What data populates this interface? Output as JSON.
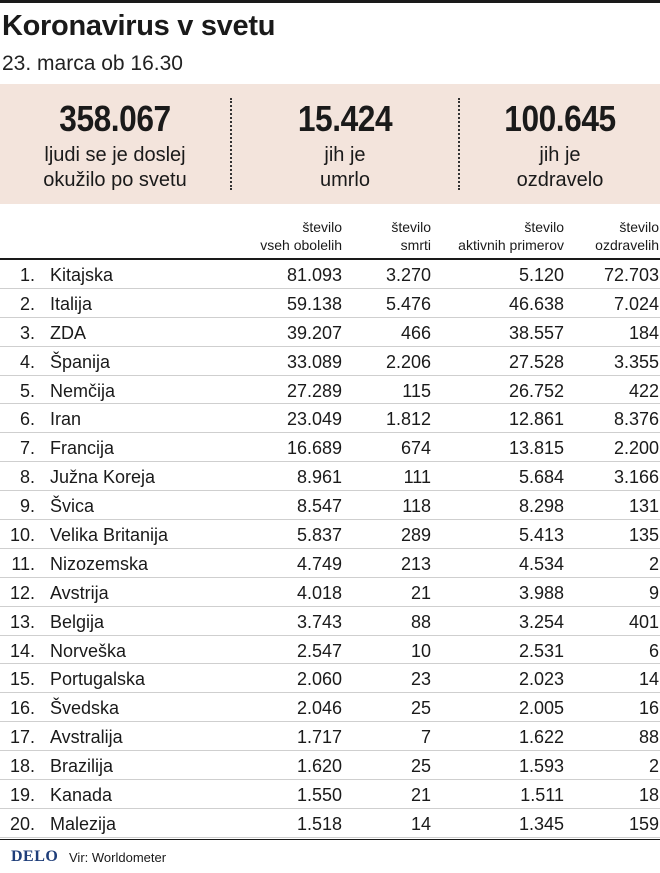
{
  "title": "Koronavirus v svetu",
  "subtitle": "23. marca ob 16.30",
  "summary": [
    {
      "value": "358.067",
      "label": "ljudi se je doslej\nokužilo po svetu"
    },
    {
      "value": "15.424",
      "label": "jih je\numrlo"
    },
    {
      "value": "100.645",
      "label": "jih je\nozdravelo"
    }
  ],
  "columns": [
    "število\nvseh obolelih",
    "število\nsmrti",
    "število\naktivnih primerov",
    "število\nozdravelih"
  ],
  "chart_data": {
    "type": "table",
    "columns": [
      "",
      "",
      "število vseh obolelih",
      "število smrti",
      "število aktivnih primerov",
      "število ozdravelih"
    ],
    "rows": [
      [
        "1.",
        "Kitajska",
        "81.093",
        "3.270",
        "5.120",
        "72.703"
      ],
      [
        "2.",
        "Italija",
        "59.138",
        "5.476",
        "46.638",
        "7.024"
      ],
      [
        "3.",
        "ZDA",
        "39.207",
        "466",
        "38.557",
        "184"
      ],
      [
        "4.",
        "Španija",
        "33.089",
        "2.206",
        "27.528",
        "3.355"
      ],
      [
        "5.",
        "Nemčija",
        "27.289",
        "115",
        "26.752",
        "422"
      ],
      [
        "6.",
        "Iran",
        "23.049",
        "1.812",
        "12.861",
        "8.376"
      ],
      [
        "7.",
        "Francija",
        "16.689",
        "674",
        "13.815",
        "2.200"
      ],
      [
        "8.",
        "Južna Koreja",
        "8.961",
        "111",
        "5.684",
        "3.166"
      ],
      [
        "9.",
        "Švica",
        "8.547",
        "118",
        "8.298",
        "131"
      ],
      [
        "10.",
        "Velika Britanija",
        "5.837",
        "289",
        "5.413",
        "135"
      ],
      [
        "11.",
        "Nizozemska",
        "4.749",
        "213",
        "4.534",
        "2"
      ],
      [
        "12.",
        "Avstrija",
        "4.018",
        "21",
        "3.988",
        "9"
      ],
      [
        "13.",
        "Belgija",
        "3.743",
        "88",
        "3.254",
        "401"
      ],
      [
        "14.",
        "Norveška",
        "2.547",
        "10",
        "2.531",
        "6"
      ],
      [
        "15.",
        "Portugalska",
        "2.060",
        "23",
        "2.023",
        "14"
      ],
      [
        "16.",
        "Švedska",
        "2.046",
        "25",
        "2.005",
        "16"
      ],
      [
        "17.",
        "Avstralija",
        "1.717",
        "7",
        "1.622",
        "88"
      ],
      [
        "18.",
        "Brazilija",
        "1.620",
        "25",
        "1.593",
        "2"
      ],
      [
        "19.",
        "Kanada",
        "1.550",
        "21",
        "1.511",
        "18"
      ],
      [
        "20.",
        "Malezija",
        "1.518",
        "14",
        "1.345",
        "159"
      ]
    ]
  },
  "footer": {
    "logo": "DELO",
    "source": "Vir: Worldometer"
  },
  "colors": {
    "summary_bg": "#f3e4dc",
    "logo": "#1f3e7a",
    "rule": "#1a1a1a"
  }
}
